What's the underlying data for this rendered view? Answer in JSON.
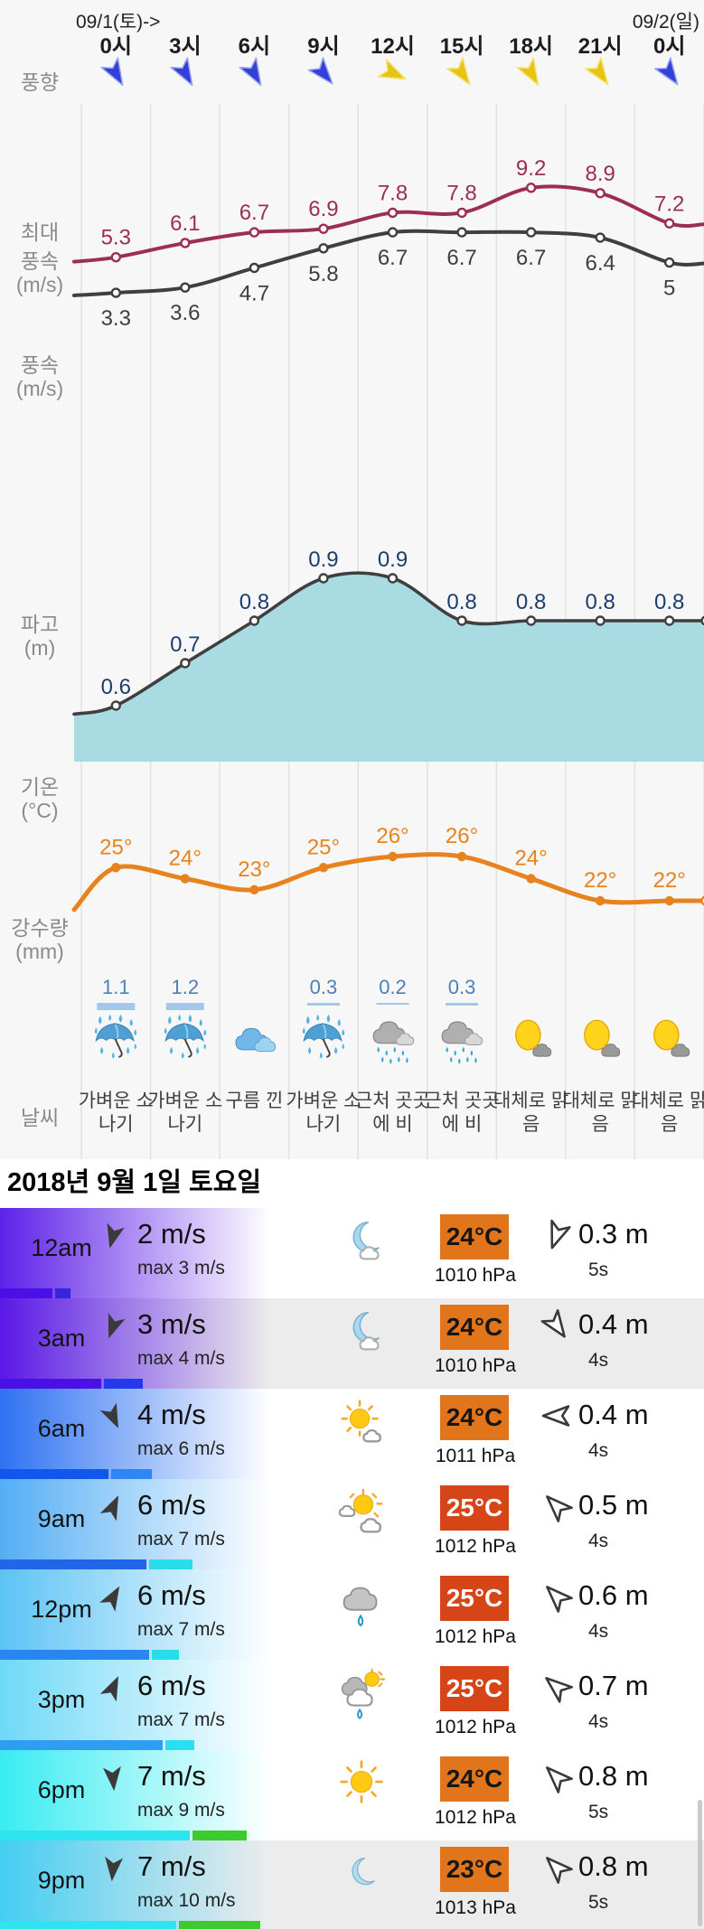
{
  "header": {
    "date_left": "09/1(토)->",
    "date_right": "09/2(일)"
  },
  "chart_data": {
    "type": "line",
    "categories": [
      "0시",
      "3시",
      "6시",
      "9시",
      "12시",
      "15시",
      "18시",
      "21시",
      "0시"
    ],
    "axis_labels": {
      "wind_dir": "풍향",
      "max_wind": [
        "최대",
        "풍속",
        "(m/s)"
      ],
      "wind": [
        "풍속",
        "(m/s)"
      ],
      "wave": [
        "파고",
        "(m)"
      ],
      "temp": [
        "기온",
        "(°C)"
      ],
      "precip": [
        "강수량",
        "(mm)"
      ],
      "weather": "날씨"
    },
    "series": [
      {
        "name": "최대풍속(m/s)",
        "values": [
          5.3,
          6.1,
          6.7,
          6.9,
          7.8,
          7.8,
          9.2,
          8.9,
          7.2
        ],
        "color": "#9c2f50"
      },
      {
        "name": "풍속(m/s)",
        "values": [
          3.3,
          3.6,
          4.7,
          5.8,
          6.7,
          6.7,
          6.7,
          6.4,
          5
        ],
        "color": "#3f3f3f"
      },
      {
        "name": "파고(m)",
        "values": [
          0.6,
          0.7,
          0.8,
          0.9,
          0.9,
          0.8,
          0.8,
          0.8,
          0.8
        ],
        "color": "#3f3f3f",
        "fill": "#a9dce2",
        "label_color": "#1c3e6e"
      },
      {
        "name": "기온(°C)",
        "values": [
          25,
          24,
          23,
          25,
          26,
          26,
          24,
          22,
          22
        ],
        "labels": [
          "25°",
          "24°",
          "23°",
          "25°",
          "26°",
          "26°",
          "24°",
          "22°",
          "22°"
        ],
        "color": "#e8821e"
      },
      {
        "name": "강수량(mm)",
        "values": [
          1.1,
          1.2,
          null,
          0.3,
          0.2,
          0.3,
          null,
          null,
          null
        ],
        "labels": [
          "1.1",
          "1.2",
          "",
          "0.3",
          "0.2",
          "0.3",
          "",
          "",
          ""
        ],
        "color": "#4d7fb8",
        "bar_color": "#a3c7ec"
      }
    ],
    "wind_directions": [
      {
        "deg": 150,
        "color": "#3340d8"
      },
      {
        "deg": 150,
        "color": "#3340d8"
      },
      {
        "deg": 150,
        "color": "#3340d8"
      },
      {
        "deg": 140,
        "color": "#3340d8"
      },
      {
        "deg": 115,
        "color": "#e6c414"
      },
      {
        "deg": 145,
        "color": "#e6c414"
      },
      {
        "deg": 150,
        "color": "#e6c414"
      },
      {
        "deg": 145,
        "color": "#e6c414"
      },
      {
        "deg": 145,
        "color": "#3340d8"
      }
    ],
    "weather": [
      {
        "icon": "umbrella-rain",
        "label": "가벼운 소나기"
      },
      {
        "icon": "umbrella-rain",
        "label": "가벼운 소나기"
      },
      {
        "icon": "clouds",
        "label": "구름 낀"
      },
      {
        "icon": "umbrella-rain",
        "label": "가벼운 소나기"
      },
      {
        "icon": "cloud-rain",
        "label": "근처 곳곳에 비"
      },
      {
        "icon": "cloud-rain",
        "label": "근처 곳곳에 비"
      },
      {
        "icon": "sun-behind-cloud",
        "label": "대체로 맑음"
      },
      {
        "icon": "sun-behind-cloud",
        "label": "대체로 맑음"
      },
      {
        "icon": "sun-behind-cloud",
        "label": "대체로 맑음"
      }
    ]
  },
  "day_header": "2018년 9월 1일 토요일",
  "rows": [
    {
      "time": "12am",
      "wind_speed": "2 m/s",
      "wind_max": "max 3 m/s",
      "wind_deg": 195,
      "icon": "moon-cloud",
      "temp": "24°C",
      "temp_bg": "#e0751b",
      "temp_fg": "#161616",
      "pressure": "1010 hPa",
      "wave": "0.3 m",
      "period": "5s",
      "wave_deg": 200,
      "grad": "#5e21e8",
      "bg": "#ffffff",
      "bar": [
        [
          "#4a10e6",
          58
        ],
        [
          "#3626d8",
          17
        ]
      ]
    },
    {
      "time": "3am",
      "wind_speed": "3 m/s",
      "wind_max": "max 4 m/s",
      "wind_deg": 200,
      "icon": "moon-cloud",
      "temp": "24°C",
      "temp_bg": "#e0751b",
      "temp_fg": "#161616",
      "pressure": "1010 hPa",
      "wave": "0.4 m",
      "period": "4s",
      "wave_deg": 145,
      "grad": "#5a18e6",
      "bg": "#ececec",
      "bar": [
        [
          "#4a10e6",
          112
        ],
        [
          "#2438ee",
          43
        ]
      ]
    },
    {
      "time": "6am",
      "wind_speed": "4 m/s",
      "wind_max": "max 6 m/s",
      "wind_deg": 155,
      "icon": "sun-small-cloud",
      "temp": "24°C",
      "temp_bg": "#e0751b",
      "temp_fg": "#161616",
      "pressure": "1011 hPa",
      "wave": "0.4 m",
      "period": "4s",
      "wave_deg": 270,
      "grad": "#2e72f2",
      "bg": "#ffffff",
      "bar": [
        [
          "#1157ee",
          120
        ],
        [
          "#2f86f2",
          45
        ]
      ]
    },
    {
      "time": "9am",
      "wind_speed": "6 m/s",
      "wind_max": "max 7 m/s",
      "wind_deg": 25,
      "icon": "sun-clouds",
      "temp": "25°C",
      "temp_bg": "#d54517",
      "temp_fg": "#ffffff",
      "pressure": "1012 hPa",
      "wave": "0.5 m",
      "period": "4s",
      "wave_deg": 315,
      "grad": "#54aef5",
      "bg": "#ffffff",
      "bar": [
        [
          "#2166e8",
          162
        ],
        [
          "#28dcea",
          48
        ]
      ]
    },
    {
      "time": "12pm",
      "wind_speed": "6 m/s",
      "wind_max": "max 7 m/s",
      "wind_deg": 30,
      "icon": "cloud-drop",
      "temp": "25°C",
      "temp_bg": "#d54517",
      "temp_fg": "#ffffff",
      "pressure": "1012 hPa",
      "wave": "0.6 m",
      "period": "4s",
      "wave_deg": 315,
      "grad": "#5cc3f5",
      "bg": "#ffffff",
      "bar": [
        [
          "#2787ee",
          165
        ],
        [
          "#28dcea",
          30
        ]
      ]
    },
    {
      "time": "3pm",
      "wind_speed": "6 m/s",
      "wind_max": "max 7 m/s",
      "wind_deg": 25,
      "icon": "cloud-sun-drop",
      "temp": "25°C",
      "temp_bg": "#d54517",
      "temp_fg": "#ffffff",
      "pressure": "1012 hPa",
      "wave": "0.7 m",
      "period": "4s",
      "wave_deg": 310,
      "grad": "#6fd9f7",
      "bg": "#ffffff",
      "bar": [
        [
          "#2f9df2",
          180
        ],
        [
          "#28e0f0",
          32
        ]
      ]
    },
    {
      "time": "6pm",
      "wind_speed": "7 m/s",
      "wind_max": "max 9 m/s",
      "wind_deg": 175,
      "icon": "sun",
      "temp": "24°C",
      "temp_bg": "#e0751b",
      "temp_fg": "#161616",
      "pressure": "1012 hPa",
      "wave": "0.8 m",
      "period": "5s",
      "wave_deg": 315,
      "grad": "#38ecf2",
      "bg": "#ffffff",
      "bar": [
        [
          "#2ee4ef",
          210
        ],
        [
          "#3ccb2e",
          60
        ]
      ]
    },
    {
      "time": "9pm",
      "wind_speed": "7 m/s",
      "wind_max": "max 10 m/s",
      "wind_deg": 185,
      "icon": "moon",
      "temp": "23°C",
      "temp_bg": "#e0751b",
      "temp_fg": "#161616",
      "pressure": "1013 hPa",
      "wave": "0.8 m",
      "period": "5s",
      "wave_deg": 315,
      "grad": "#45cdf2",
      "bg": "#ececec",
      "bar": [
        [
          "#2ee4ef",
          195
        ],
        [
          "#3ccb2e",
          90
        ]
      ]
    }
  ]
}
